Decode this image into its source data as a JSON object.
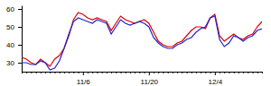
{
  "chart_data": {
    "type": "line",
    "categories": [
      null,
      null,
      null,
      null,
      null,
      null,
      null,
      null,
      null,
      null,
      null,
      null,
      null,
      "11/6",
      null,
      null,
      null,
      null,
      null,
      null,
      null,
      null,
      null,
      null,
      null,
      null,
      null,
      "11/20",
      null,
      null,
      null,
      null,
      null,
      null,
      null,
      null,
      null,
      null,
      null,
      null,
      null,
      "12/4",
      null,
      null,
      null,
      null,
      null,
      null,
      null,
      null,
      null,
      null
    ],
    "series": [
      {
        "color": "#dd0000",
        "values": [
          33,
          32,
          30,
          29,
          32,
          30,
          28,
          32,
          34,
          38,
          45,
          54,
          58,
          57,
          55,
          54,
          55,
          54,
          53,
          48,
          52,
          56,
          54,
          53,
          52,
          53,
          54,
          52,
          47,
          42,
          40,
          39,
          39,
          41,
          42,
          45,
          48,
          50,
          50,
          49,
          55,
          57,
          45,
          42,
          44,
          46,
          44,
          43,
          45,
          46,
          50,
          53
        ]
      },
      {
        "color": "#2222cc",
        "values": [
          30,
          30,
          29,
          29,
          31,
          30,
          26,
          27,
          31,
          38,
          46,
          53,
          55,
          54,
          53,
          52,
          54,
          53,
          52,
          46,
          50,
          54,
          52,
          51,
          52,
          53,
          52,
          50,
          44,
          41,
          39,
          38,
          38,
          40,
          41,
          43,
          44,
          47,
          49,
          50,
          55,
          56,
          43,
          39,
          41,
          45,
          44,
          42,
          44,
          45,
          48,
          49
        ]
      }
    ],
    "ylim": [
      25,
      62
    ],
    "yticks": [
      30,
      40,
      50,
      60
    ]
  }
}
